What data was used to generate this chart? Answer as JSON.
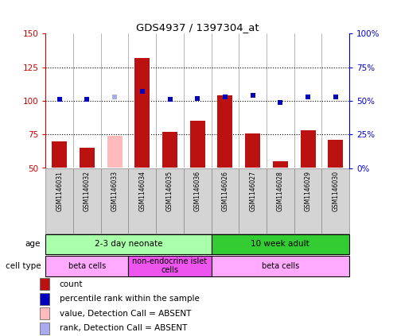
{
  "title": "GDS4937 / 1397304_at",
  "samples": [
    "GSM1146031",
    "GSM1146032",
    "GSM1146033",
    "GSM1146034",
    "GSM1146035",
    "GSM1146036",
    "GSM1146026",
    "GSM1146027",
    "GSM1146028",
    "GSM1146029",
    "GSM1146030"
  ],
  "bar_values": [
    70,
    65,
    74,
    132,
    77,
    85,
    104,
    76,
    55,
    78,
    71
  ],
  "bar_absent": [
    false,
    false,
    true,
    false,
    false,
    false,
    false,
    false,
    false,
    false,
    false
  ],
  "rank_values": [
    51,
    51,
    53,
    57,
    51,
    52,
    53,
    54,
    49,
    53,
    53
  ],
  "rank_absent": [
    false,
    false,
    true,
    false,
    false,
    false,
    false,
    false,
    false,
    false,
    false
  ],
  "bar_color": "#BB1111",
  "bar_absent_color": "#FFBBBB",
  "rank_color": "#0000BB",
  "rank_absent_color": "#AAAAEE",
  "ylim": [
    50,
    150
  ],
  "yticks": [
    50,
    75,
    100,
    125,
    150
  ],
  "y2lim": [
    0,
    100
  ],
  "y2ticks": [
    0,
    25,
    50,
    75,
    100
  ],
  "y2labels": [
    "0%",
    "25%",
    "50%",
    "75%",
    "100%"
  ],
  "age_groups": [
    {
      "label": "2-3 day neonate",
      "start": 0,
      "end": 6,
      "color": "#AAFFAA"
    },
    {
      "label": "10 week adult",
      "start": 6,
      "end": 11,
      "color": "#33CC33"
    }
  ],
  "cell_type_groups": [
    {
      "label": "beta cells",
      "start": 0,
      "end": 3,
      "color": "#FFAAFF"
    },
    {
      "label": "non-endocrine islet\ncells",
      "start": 3,
      "end": 6,
      "color": "#EE55EE"
    },
    {
      "label": "beta cells",
      "start": 6,
      "end": 11,
      "color": "#FFAAFF"
    }
  ],
  "legend_items": [
    {
      "label": "count",
      "color": "#BB1111"
    },
    {
      "label": "percentile rank within the sample",
      "color": "#0000BB"
    },
    {
      "label": "value, Detection Call = ABSENT",
      "color": "#FFBBBB"
    },
    {
      "label": "rank, Detection Call = ABSENT",
      "color": "#AAAAEE"
    }
  ],
  "bar_width": 0.55,
  "marker_size": 5,
  "bg_color": "#FFFFFF",
  "ylabel_color": "#CC0000",
  "y2label_color": "#0000CC",
  "age_row_label": "age",
  "cell_type_row_label": "cell type"
}
